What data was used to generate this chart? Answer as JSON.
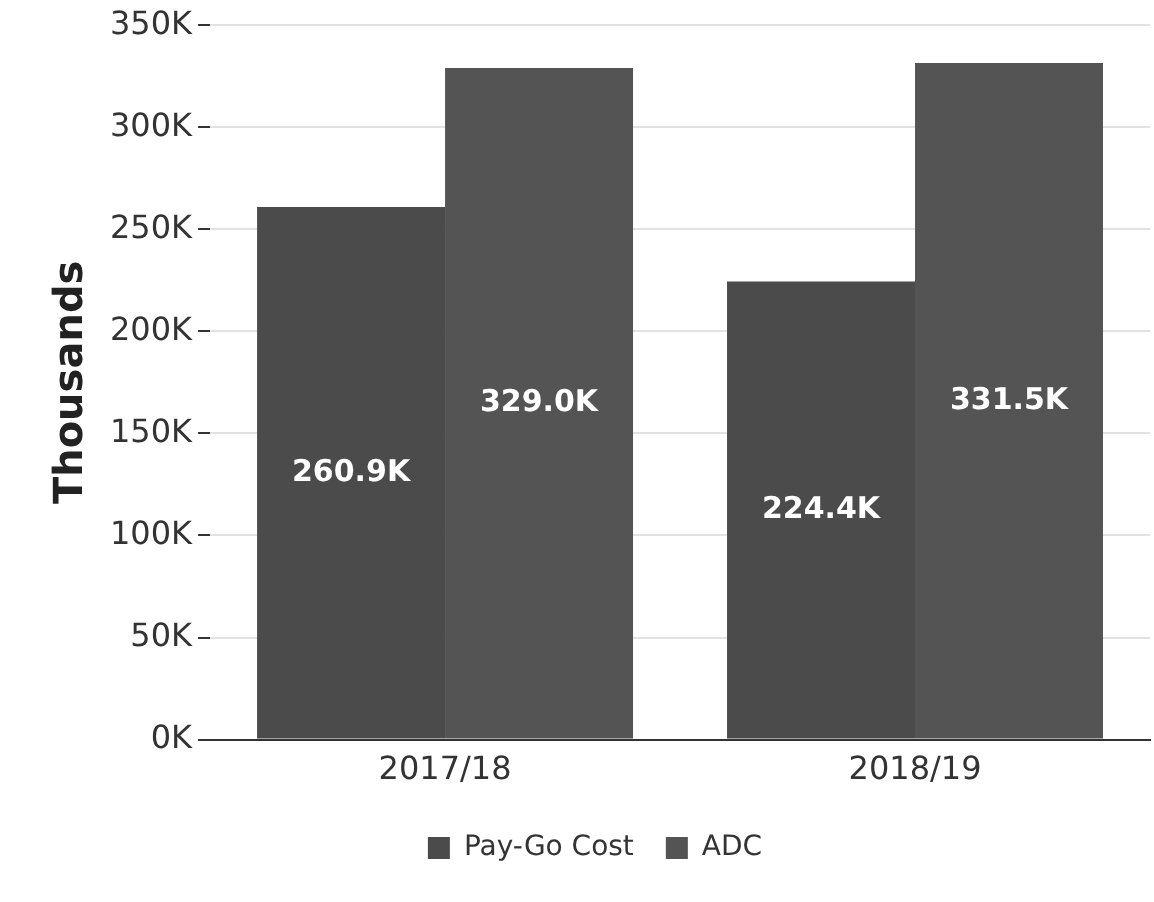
{
  "chart_data": {
    "type": "bar",
    "ylabel": "Thousands",
    "categories": [
      "2017/18",
      "2018/19"
    ],
    "series": [
      {
        "name": "Pay-Go Cost",
        "color": "#4b4b4b",
        "values": [
          260.9,
          224.4
        ],
        "value_labels": [
          "260.9K",
          "224.4K"
        ]
      },
      {
        "name": "ADC",
        "color": "#545454",
        "values": [
          329.0,
          331.5
        ],
        "value_labels": [
          "329.0K",
          "331.5K"
        ]
      }
    ],
    "ylim": [
      0,
      350
    ],
    "yticks": [
      {
        "value": 0,
        "label": "0K"
      },
      {
        "value": 50,
        "label": "50K"
      },
      {
        "value": 100,
        "label": "100K"
      },
      {
        "value": 150,
        "label": "150K"
      },
      {
        "value": 200,
        "label": "200K"
      },
      {
        "value": 250,
        "label": "250K"
      },
      {
        "value": 300,
        "label": "300K"
      },
      {
        "value": 350,
        "label": "350K"
      }
    ],
    "grid": "y",
    "legend": "bottom"
  }
}
